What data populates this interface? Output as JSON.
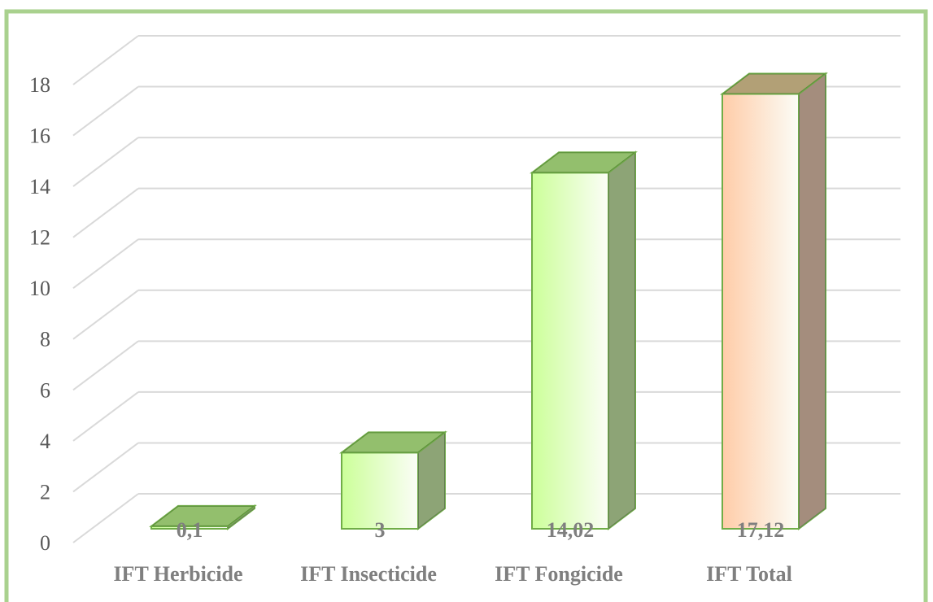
{
  "chart_data": {
    "type": "bar3d",
    "categories": [
      "IFT Herbicide",
      "IFT Insecticide",
      "IFT Fongicide",
      "IFT Total"
    ],
    "values": [
      0.1,
      3,
      14.02,
      17.12
    ],
    "value_labels": [
      "0,1",
      "3",
      "14,02",
      "17,12"
    ],
    "colors": [
      "#ccff99",
      "#ccff99",
      "#ccff99",
      "#ffcca8"
    ],
    "ylim": [
      0,
      18
    ],
    "yticks": [
      0,
      2,
      4,
      6,
      8,
      10,
      12,
      14,
      16,
      18
    ],
    "grid": true
  }
}
